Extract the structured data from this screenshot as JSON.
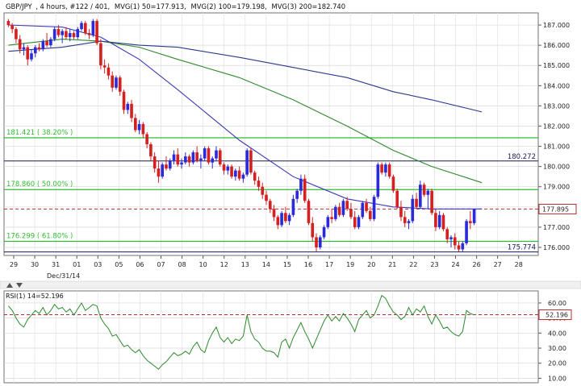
{
  "header": {
    "symbol": "GBP/JPY",
    "timeframe": ", 4 hours, #122 / 401,",
    "ma1": "MVG(1) 50=177.913,",
    "ma2": "MVG(2) 100=179.198,",
    "ma3": "MVG(3) 200=182.740"
  },
  "colors": {
    "bull": "#2a2ad8",
    "bear": "#d42020",
    "ma50": "#3b3bb5",
    "ma100": "#2e8a2e",
    "ma200": "#2a3a8a",
    "fib": "#33bb33",
    "rsi": "#2e8a2e",
    "dashed": "#b03030"
  },
  "chart_data": [
    {
      "type": "candlestick",
      "symbol": "GBP/JPY",
      "ylim": [
        175.6,
        187.6
      ],
      "y_ticks": [
        176.0,
        177.0,
        178.0,
        179.0,
        180.0,
        181.0,
        182.0,
        183.0,
        184.0,
        185.0,
        186.0,
        187.0
      ],
      "x_tick_labels": [
        "29",
        "30",
        "31",
        "01",
        "03",
        "05",
        "06",
        "07",
        "08",
        "10",
        "12",
        "13",
        "14",
        "15",
        "16",
        "17",
        "19",
        "20",
        "21",
        "22",
        "23",
        "24",
        "26",
        "27",
        "28"
      ],
      "x_tick_sublabel": "Dec/31/14",
      "ohlc": [
        [
          187.2,
          187.3,
          186.9,
          187.0
        ],
        [
          187.0,
          187.1,
          186.6,
          186.8
        ],
        [
          186.8,
          186.9,
          186.1,
          186.3
        ],
        [
          186.3,
          186.5,
          185.6,
          185.8
        ],
        [
          185.8,
          186.1,
          185.5,
          185.9
        ],
        [
          185.9,
          186.0,
          185.0,
          185.3
        ],
        [
          185.3,
          185.8,
          185.2,
          185.6
        ],
        [
          185.6,
          186.0,
          185.4,
          185.9
        ],
        [
          185.9,
          186.1,
          185.7,
          185.8
        ],
        [
          185.8,
          186.3,
          185.7,
          186.2
        ],
        [
          186.2,
          186.6,
          185.9,
          186.0
        ],
        [
          186.0,
          186.4,
          185.9,
          186.3
        ],
        [
          186.3,
          186.9,
          186.2,
          186.8
        ],
        [
          186.8,
          187.0,
          186.4,
          186.5
        ],
        [
          186.5,
          186.8,
          186.1,
          186.7
        ],
        [
          186.7,
          186.9,
          186.3,
          186.4
        ],
        [
          186.4,
          186.8,
          186.2,
          186.6
        ],
        [
          186.6,
          186.7,
          186.3,
          186.4
        ],
        [
          186.4,
          186.9,
          186.3,
          186.8
        ],
        [
          186.8,
          187.2,
          186.7,
          187.1
        ],
        [
          187.1,
          187.2,
          186.5,
          186.6
        ],
        [
          186.6,
          186.8,
          186.3,
          186.5
        ],
        [
          186.5,
          187.3,
          186.4,
          187.2
        ],
        [
          187.2,
          187.3,
          186.0,
          186.1
        ],
        [
          186.1,
          186.3,
          184.8,
          185.0
        ],
        [
          185.0,
          185.3,
          184.6,
          184.9
        ],
        [
          184.9,
          185.1,
          184.3,
          184.5
        ],
        [
          184.5,
          184.7,
          183.7,
          183.9
        ],
        [
          183.9,
          184.5,
          183.8,
          184.4
        ],
        [
          184.4,
          184.5,
          183.5,
          183.7
        ],
        [
          183.7,
          183.8,
          182.6,
          182.8
        ],
        [
          182.8,
          183.2,
          182.6,
          183.1
        ],
        [
          183.1,
          183.3,
          182.2,
          182.4
        ],
        [
          182.4,
          182.6,
          181.7,
          181.8
        ],
        [
          181.8,
          182.3,
          181.6,
          182.1
        ],
        [
          182.1,
          182.2,
          181.4,
          181.6
        ],
        [
          181.6,
          181.7,
          180.9,
          181.1
        ],
        [
          181.1,
          181.2,
          180.3,
          180.5
        ],
        [
          180.5,
          180.7,
          179.7,
          179.9
        ],
        [
          179.9,
          180.3,
          179.2,
          179.5
        ],
        [
          179.5,
          180.2,
          179.4,
          180.1
        ],
        [
          180.1,
          180.5,
          179.8,
          179.9
        ],
        [
          179.9,
          180.4,
          179.8,
          180.3
        ],
        [
          180.3,
          180.8,
          180.1,
          180.6
        ],
        [
          180.6,
          180.9,
          180.0,
          180.1
        ],
        [
          180.1,
          180.4,
          179.9,
          180.2
        ],
        [
          180.2,
          180.7,
          180.1,
          180.5
        ],
        [
          180.5,
          180.6,
          180.0,
          180.2
        ],
        [
          180.2,
          180.8,
          180.1,
          180.7
        ],
        [
          180.7,
          181.0,
          180.2,
          180.3
        ],
        [
          180.3,
          180.6,
          179.9,
          180.4
        ],
        [
          180.4,
          181.0,
          180.3,
          180.9
        ],
        [
          180.9,
          181.0,
          180.1,
          180.2
        ],
        [
          180.2,
          180.5,
          179.9,
          180.4
        ],
        [
          180.4,
          181.0,
          180.3,
          180.8
        ],
        [
          180.8,
          180.9,
          180.0,
          180.1
        ],
        [
          180.1,
          180.2,
          179.6,
          179.8
        ],
        [
          179.8,
          180.1,
          179.6,
          180.0
        ],
        [
          180.0,
          180.1,
          179.4,
          179.5
        ],
        [
          179.5,
          179.9,
          179.3,
          179.8
        ],
        [
          179.8,
          180.0,
          179.3,
          179.4
        ],
        [
          179.4,
          179.7,
          179.2,
          179.6
        ],
        [
          179.6,
          180.9,
          179.5,
          180.8
        ],
        [
          180.8,
          180.9,
          179.6,
          179.7
        ],
        [
          179.7,
          179.8,
          179.1,
          179.3
        ],
        [
          179.3,
          179.5,
          178.8,
          179.0
        ],
        [
          179.0,
          179.2,
          178.4,
          178.6
        ],
        [
          178.6,
          178.8,
          178.1,
          178.3
        ],
        [
          178.3,
          178.4,
          177.7,
          177.9
        ],
        [
          177.9,
          178.1,
          177.3,
          177.5
        ],
        [
          177.5,
          177.6,
          176.9,
          177.1
        ],
        [
          177.1,
          177.8,
          177.0,
          177.7
        ],
        [
          177.7,
          178.0,
          177.2,
          177.3
        ],
        [
          177.3,
          177.7,
          177.1,
          177.6
        ],
        [
          177.6,
          178.6,
          177.5,
          178.4
        ],
        [
          178.4,
          178.9,
          178.2,
          178.8
        ],
        [
          178.8,
          179.6,
          178.6,
          179.4
        ],
        [
          179.4,
          179.6,
          178.2,
          178.3
        ],
        [
          178.3,
          178.4,
          177.1,
          177.2
        ],
        [
          177.2,
          177.5,
          176.3,
          176.5
        ],
        [
          176.5,
          176.7,
          175.8,
          176.0
        ],
        [
          176.0,
          176.6,
          175.9,
          176.5
        ],
        [
          176.5,
          177.1,
          176.4,
          177.0
        ],
        [
          177.0,
          177.6,
          176.9,
          177.5
        ],
        [
          177.5,
          177.9,
          177.2,
          177.4
        ],
        [
          177.4,
          178.1,
          177.3,
          178.0
        ],
        [
          178.0,
          178.2,
          177.5,
          177.6
        ],
        [
          177.6,
          178.4,
          177.5,
          178.3
        ],
        [
          178.3,
          178.5,
          177.8,
          177.9
        ],
        [
          177.9,
          178.2,
          177.4,
          177.5
        ],
        [
          177.5,
          177.8,
          176.9,
          177.0
        ],
        [
          177.0,
          177.6,
          176.9,
          177.5
        ],
        [
          177.5,
          178.3,
          177.4,
          178.2
        ],
        [
          178.2,
          178.4,
          177.7,
          177.8
        ],
        [
          177.8,
          178.0,
          177.3,
          177.4
        ],
        [
          177.4,
          178.6,
          177.3,
          178.5
        ],
        [
          178.5,
          180.2,
          178.4,
          180.1
        ],
        [
          180.1,
          180.2,
          179.6,
          179.7
        ],
        [
          179.7,
          180.2,
          179.5,
          180.1
        ],
        [
          180.1,
          180.2,
          179.4,
          179.5
        ],
        [
          179.5,
          179.6,
          178.7,
          178.8
        ],
        [
          178.8,
          178.9,
          177.9,
          178.0
        ],
        [
          178.0,
          178.3,
          177.3,
          177.5
        ],
        [
          177.5,
          177.8,
          177.0,
          177.2
        ],
        [
          177.2,
          177.4,
          176.9,
          177.3
        ],
        [
          177.3,
          178.6,
          177.2,
          178.4
        ],
        [
          178.4,
          178.7,
          177.9,
          178.0
        ],
        [
          178.0,
          179.3,
          177.9,
          179.1
        ],
        [
          179.1,
          179.2,
          178.5,
          178.6
        ],
        [
          178.6,
          178.9,
          177.9,
          178.8
        ],
        [
          178.8,
          178.9,
          177.6,
          177.7
        ],
        [
          177.7,
          177.9,
          176.8,
          177.0
        ],
        [
          177.0,
          177.8,
          176.9,
          177.6
        ],
        [
          177.6,
          177.7,
          176.8,
          176.9
        ],
        [
          176.9,
          177.0,
          176.2,
          176.4
        ],
        [
          176.4,
          176.6,
          176.0,
          176.5
        ],
        [
          176.5,
          176.7,
          175.9,
          176.1
        ],
        [
          176.1,
          176.3,
          175.8,
          175.9
        ],
        [
          175.9,
          176.3,
          175.8,
          176.2
        ],
        [
          176.2,
          177.4,
          176.1,
          177.3
        ],
        [
          177.3,
          177.8,
          176.9,
          177.2
        ],
        [
          177.2,
          177.9,
          177.1,
          177.9
        ]
      ],
      "ma": [
        {
          "name": "MVG(1) 50",
          "points": [
            [
              0,
              187.0
            ],
            [
              14,
              186.9
            ],
            [
              24,
              186.4
            ],
            [
              34,
              185.3
            ],
            [
              44,
              183.8
            ],
            [
              60,
              181.3
            ],
            [
              74,
              179.5
            ],
            [
              88,
              178.4
            ],
            [
              100,
              178.0
            ],
            [
              110,
              177.9
            ],
            [
              123,
              177.9
            ]
          ]
        },
        {
          "name": "MVG(2) 100",
          "points": [
            [
              0,
              186.0
            ],
            [
              14,
              186.3
            ],
            [
              24,
              186.2
            ],
            [
              34,
              185.9
            ],
            [
              44,
              185.3
            ],
            [
              60,
              184.4
            ],
            [
              74,
              183.3
            ],
            [
              88,
              182.0
            ],
            [
              100,
              180.8
            ],
            [
              110,
              180.0
            ],
            [
              123,
              179.2
            ]
          ]
        },
        {
          "name": "MVG(3) 200",
          "points": [
            [
              0,
              185.7
            ],
            [
              14,
              185.9
            ],
            [
              24,
              186.2
            ],
            [
              34,
              186.0
            ],
            [
              44,
              185.9
            ],
            [
              60,
              185.4
            ],
            [
              74,
              184.9
            ],
            [
              88,
              184.4
            ],
            [
              100,
              183.7
            ],
            [
              110,
              183.3
            ],
            [
              123,
              182.7
            ]
          ]
        }
      ],
      "fib_levels": [
        {
          "value": 181.421,
          "label": "181.421  ( 38.20% )"
        },
        {
          "value": 178.86,
          "label": "178.860  ( 50.00% )"
        },
        {
          "value": 176.299,
          "label": "176.299  ( 61.80% )"
        }
      ],
      "hlines": [
        {
          "value": 180.272,
          "label": "180.272"
        },
        {
          "value": 175.774,
          "label": "175.774"
        }
      ],
      "current_price": {
        "value": 177.895,
        "label": "177.895"
      }
    },
    {
      "type": "line",
      "title": "RSI(1) 14=52.196",
      "ylim": [
        7,
        68
      ],
      "y_ticks": [
        10.0,
        20.0,
        30.0,
        40.0,
        50.0,
        60.0
      ],
      "current": {
        "value": 52.196,
        "label": "52.196"
      },
      "series": [
        {
          "name": "RSI(1) 14",
          "values": [
            58,
            55,
            50,
            46,
            44,
            49,
            52,
            55,
            53,
            57,
            52,
            55,
            59,
            56,
            57,
            54,
            56,
            52,
            56,
            60,
            55,
            57,
            59,
            58,
            50,
            46,
            43,
            38,
            39,
            35,
            31,
            32,
            29,
            27,
            29,
            25,
            22,
            20,
            18,
            16,
            19,
            21,
            24,
            27,
            25,
            26,
            28,
            26,
            31,
            34,
            29,
            27,
            35,
            40,
            44,
            37,
            34,
            37,
            33,
            36,
            35,
            38,
            52,
            41,
            36,
            34,
            30,
            28,
            28,
            27,
            24,
            34,
            36,
            30,
            37,
            42,
            47,
            41,
            36,
            30,
            36,
            42,
            48,
            52,
            48,
            51,
            48,
            53,
            50,
            46,
            41,
            49,
            52,
            55,
            50,
            52,
            58,
            65,
            63,
            58,
            54,
            52,
            49,
            51,
            57,
            52,
            56,
            54,
            58,
            51,
            46,
            52,
            48,
            43,
            44,
            41,
            39,
            38,
            41,
            55,
            53,
            52
          ]
        }
      ]
    }
  ]
}
